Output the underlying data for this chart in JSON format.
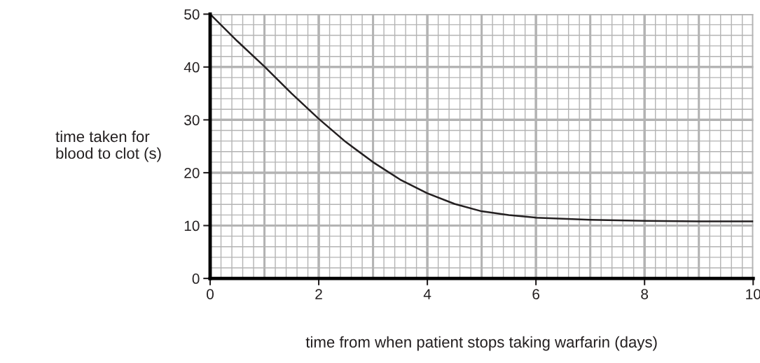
{
  "chart_data": {
    "type": "line",
    "xlabel": "time from when patient stops taking warfarin (days)",
    "ylabel": "time taken for\nblood to clot (s)",
    "x": [
      0,
      0.5,
      1,
      1.5,
      2,
      2.5,
      3,
      3.5,
      4,
      4.5,
      5,
      5.5,
      6,
      7,
      8,
      9,
      10
    ],
    "series": [
      {
        "color": "#231f20",
        "values": [
          50,
          44.9,
          40.1,
          35,
          30.2,
          25.8,
          22,
          18.7,
          16.1,
          14.1,
          12.7,
          12,
          11.5,
          11.1,
          10.9,
          10.8,
          10.8
        ]
      }
    ],
    "xlim": [
      0,
      10
    ],
    "ylim": [
      0,
      50
    ],
    "xticks": [
      0,
      2,
      4,
      6,
      8,
      10
    ],
    "yticks": [
      0,
      10,
      20,
      30,
      40,
      50
    ],
    "grid": true,
    "marker": "none",
    "line_style": "solid"
  }
}
